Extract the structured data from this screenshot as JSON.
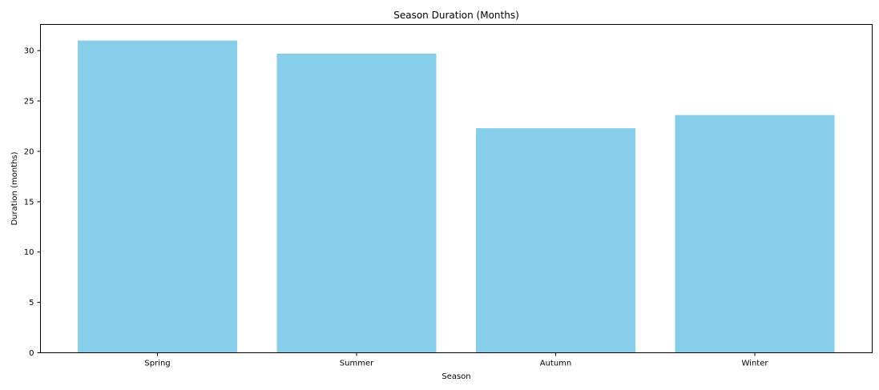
{
  "chart_data": {
    "type": "bar",
    "title": "Season Duration (Months)",
    "xlabel": "Season",
    "ylabel": "Duration (months)",
    "categories": [
      "Spring",
      "Summer",
      "Autumn",
      "Winter"
    ],
    "values": [
      31.0,
      29.7,
      22.3,
      23.6
    ],
    "ylim": [
      0,
      32.6
    ],
    "yticks": [
      0,
      5,
      10,
      15,
      20,
      25,
      30
    ],
    "bar_color": "#87CEEB",
    "grid": false,
    "legend": "none"
  }
}
